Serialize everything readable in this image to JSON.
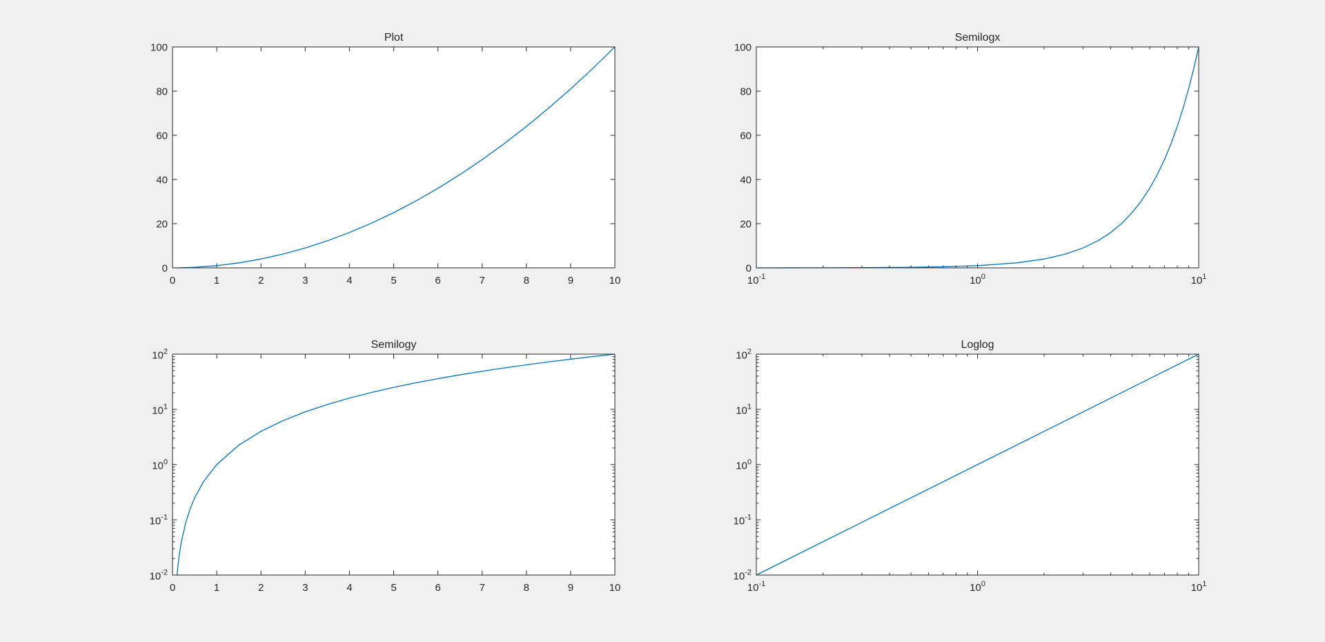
{
  "figure": {
    "background": "#f0f0f0",
    "line_color": "#0072bd",
    "axes_color": "#262626"
  },
  "chart_data": [
    {
      "type": "line",
      "title": "Plot",
      "xscale": "linear",
      "yscale": "linear",
      "xlim": [
        0,
        10
      ],
      "ylim": [
        0,
        100
      ],
      "xticks": [
        0,
        1,
        2,
        3,
        4,
        5,
        6,
        7,
        8,
        9,
        10
      ],
      "xticklabels": [
        "0",
        "1",
        "2",
        "3",
        "4",
        "5",
        "6",
        "7",
        "8",
        "9",
        "10"
      ],
      "yticks": [
        0,
        20,
        40,
        60,
        80,
        100
      ],
      "yticklabels": [
        "0",
        "20",
        "40",
        "60",
        "80",
        "100"
      ],
      "grid": false,
      "series": [
        {
          "color": "#0072bd",
          "x": [
            0.1,
            0.5,
            1,
            1.5,
            2,
            2.5,
            3,
            3.5,
            4,
            4.5,
            5,
            5.5,
            6,
            6.5,
            7,
            7.5,
            8,
            8.5,
            9,
            9.5,
            10
          ],
          "y": [
            0.01,
            0.25,
            1,
            2.25,
            4,
            6.25,
            9,
            12.25,
            16,
            20.25,
            25,
            30.25,
            36,
            42.25,
            49,
            56.25,
            64,
            72.25,
            81,
            90.25,
            100
          ]
        }
      ]
    },
    {
      "type": "line",
      "title": "Semilogx",
      "xscale": "log",
      "yscale": "linear",
      "xlim": [
        0.1,
        10
      ],
      "ylim": [
        0,
        100
      ],
      "xticks": [
        0.1,
        1,
        10
      ],
      "xticklabels": [
        {
          "base": "10",
          "exp": "-1"
        },
        {
          "base": "10",
          "exp": "0"
        },
        {
          "base": "10",
          "exp": "1"
        }
      ],
      "yticks": [
        0,
        20,
        40,
        60,
        80,
        100
      ],
      "yticklabels": [
        "0",
        "20",
        "40",
        "60",
        "80",
        "100"
      ],
      "grid": false,
      "series": [
        {
          "color": "#0072bd",
          "x": [
            0.1,
            0.2,
            0.3,
            0.5,
            0.7,
            1,
            1.5,
            2,
            2.5,
            3,
            3.5,
            4,
            4.5,
            5,
            5.5,
            6,
            6.5,
            7,
            7.5,
            8,
            8.5,
            9,
            9.5,
            10
          ],
          "y": [
            0.01,
            0.04,
            0.09,
            0.25,
            0.49,
            1,
            2.25,
            4,
            6.25,
            9,
            12.25,
            16,
            20.25,
            25,
            30.25,
            36,
            42.25,
            49,
            56.25,
            64,
            72.25,
            81,
            90.25,
            100
          ]
        }
      ]
    },
    {
      "type": "line",
      "title": "Semilogy",
      "xscale": "linear",
      "yscale": "log",
      "xlim": [
        0,
        10
      ],
      "ylim": [
        0.01,
        100
      ],
      "xticks": [
        0,
        1,
        2,
        3,
        4,
        5,
        6,
        7,
        8,
        9,
        10
      ],
      "xticklabels": [
        "0",
        "1",
        "2",
        "3",
        "4",
        "5",
        "6",
        "7",
        "8",
        "9",
        "10"
      ],
      "yticks": [
        0.01,
        0.1,
        1,
        10,
        100
      ],
      "yticklabels": [
        {
          "base": "10",
          "exp": "-2"
        },
        {
          "base": "10",
          "exp": "-1"
        },
        {
          "base": "10",
          "exp": "0"
        },
        {
          "base": "10",
          "exp": "1"
        },
        {
          "base": "10",
          "exp": "2"
        }
      ],
      "grid": false,
      "series": [
        {
          "color": "#0072bd",
          "x": [
            0.1,
            0.15,
            0.2,
            0.3,
            0.4,
            0.5,
            0.7,
            1,
            1.5,
            2,
            2.5,
            3,
            3.5,
            4,
            4.5,
            5,
            5.5,
            6,
            6.5,
            7,
            7.5,
            8,
            8.5,
            9,
            9.5,
            10
          ],
          "y": [
            0.01,
            0.0225,
            0.04,
            0.09,
            0.16,
            0.25,
            0.49,
            1,
            2.25,
            4,
            6.25,
            9,
            12.25,
            16,
            20.25,
            25,
            30.25,
            36,
            42.25,
            49,
            56.25,
            64,
            72.25,
            81,
            90.25,
            100
          ]
        }
      ]
    },
    {
      "type": "line",
      "title": "Loglog",
      "xscale": "log",
      "yscale": "log",
      "xlim": [
        0.1,
        10
      ],
      "ylim": [
        0.01,
        100
      ],
      "xticks": [
        0.1,
        1,
        10
      ],
      "xticklabels": [
        {
          "base": "10",
          "exp": "-1"
        },
        {
          "base": "10",
          "exp": "0"
        },
        {
          "base": "10",
          "exp": "1"
        }
      ],
      "yticks": [
        0.01,
        0.1,
        1,
        10,
        100
      ],
      "yticklabels": [
        {
          "base": "10",
          "exp": "-2"
        },
        {
          "base": "10",
          "exp": "-1"
        },
        {
          "base": "10",
          "exp": "0"
        },
        {
          "base": "10",
          "exp": "1"
        },
        {
          "base": "10",
          "exp": "2"
        }
      ],
      "grid": false,
      "series": [
        {
          "color": "#0072bd",
          "x": [
            0.1,
            0.3,
            1,
            3,
            10
          ],
          "y": [
            0.01,
            0.09,
            1,
            9,
            100
          ]
        }
      ]
    }
  ]
}
